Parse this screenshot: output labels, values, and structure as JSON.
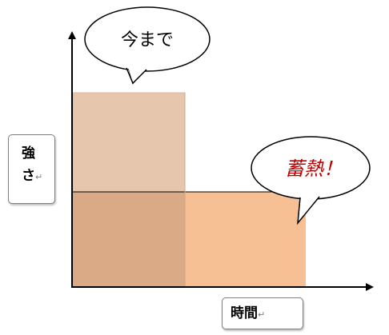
{
  "bubbles": {
    "current": {
      "text": "今まで"
    },
    "storage": {
      "text": "蓄熱！"
    }
  },
  "axes": {
    "y_label_line1": "強",
    "y_label_line2": "さ",
    "x_label": "時間",
    "paragraph_mark": "↵"
  },
  "colors": {
    "previous_level": "#e6c7ae",
    "overlap": "#d9aa85",
    "stored_level": "#f6c094",
    "accent_text": "#c00000"
  }
}
